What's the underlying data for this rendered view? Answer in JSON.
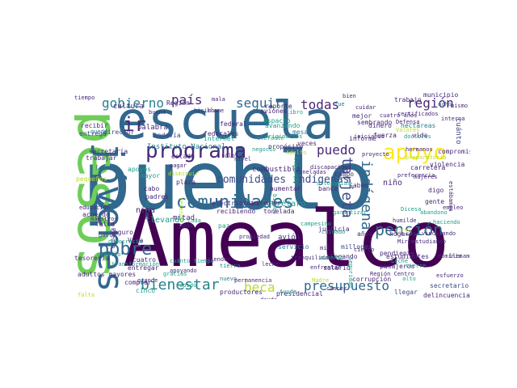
{
  "palette": {
    "dark_purple": "#440154",
    "purple": "#482878",
    "indigo": "#3e4a89",
    "blue": "#31688e",
    "teal_blue": "#26828e",
    "teal": "#1f9e89",
    "green": "#35b779",
    "light_green": "#6ece58",
    "lime": "#8fd744",
    "yellow_green": "#b5de2b",
    "yellow": "#fde725"
  },
  "words": [
    "pueblo",
    "Amealco",
    "escuela",
    "pesos",
    "jóvenes",
    "programa",
    "comunidades",
    "apoyo",
    "pensión",
    "pobre",
    "bienestar",
    "beca",
    "presupuesto",
    "región",
    "gobierno",
    "país",
    "seguir",
    "todas",
    "puedo",
    "indígena",
    "tarjeta",
    "ir",
    "comunidades indígenas",
    "municipio",
    "tiempo",
    "recibir",
    "entrega",
    "cultura",
    "director",
    "palabra",
    "todavía",
    "Instituto Nacional",
    "educación",
    "secretaría",
    "acuerdo",
    "maestros",
    "avión",
    "cuánto",
    "vida",
    "hectáreas",
    "apoyos",
    "mitad",
    "niña",
    "niño",
    "cabo",
    "padres",
    "llevando",
    "Querétaro",
    "tonelada",
    "electricidad",
    "recibiendo",
    "aumentar",
    "banco",
    "campo",
    "Saben",
    "digo",
    "gente",
    "años",
    "millones",
    "llegando",
    "trabajo",
    "salario",
    "hogares",
    "estudiantes",
    "pasajeros",
    "secretario",
    "delincuencia",
    "llegar",
    "presidencial",
    "productores",
    "cinco",
    "cuatro",
    "entregar",
    "comprar",
    "tesorería",
    "adultos mayores",
    "falta",
    "grande",
    "Seguro",
    "Viva",
    "gusto",
    "democracia",
    "estudiando",
    "pendiente",
    "campesino",
    "justicia",
    "servicio",
    "mejor",
    "sembrando",
    "federal",
    "federales",
    "estado",
    "espacio",
    "reporte",
    "avanzando",
    "combustible",
    "disminuir",
    "mayor",
    "dinero",
    "cuatro años",
    "Valores",
    "fuerza",
    "Defensa",
    "interna",
    "trabajar",
    "pequeños",
    "Precio",
    "metas",
    "falta",
    "plaza",
    "veces",
    "propósito",
    "compromiso",
    "violencia",
    "carretera",
    "aviones",
    "informe",
    "Región",
    "buena",
    "hicimos",
    "llame",
    "mala",
    "libro",
    "bien",
    "fue",
    "paz",
    "ocho",
    "mismo",
    "mesa",
    "enfrentar",
    "humilde",
    "iniciando",
    "corrupción",
    "Dicesa",
    "abandono",
    "artesanías",
    "dominio",
    "doctores",
    "llenamos",
    "sirve",
    "tierra",
    "Ayuda",
    "deuda",
    "Miren",
    "internet",
    "Madre",
    "aumento",
    "Seguridad",
    "cierto",
    "mil",
    "pago",
    "rápido",
    "queda",
    "nuevo",
    "orgullo",
    "transformación",
    "originarios",
    "elefante",
    "Leche",
    "gracias",
    "reserva",
    "bienes",
    "garantizar",
    "cierre",
    "sólo",
    "llegando",
    "permanencia",
    "impuestos",
    "discapacidad",
    "certificados",
    "estábamos",
    "haciendo",
    "cuidar",
    "tranquilidad",
    "cuidado",
    "Adolfo",
    "preparatoria",
    "hermanos",
    "cuánto tiempo",
    "propiedad",
    "preferencia",
    "cáncer",
    "empleo",
    "negocio",
    "pagar",
    "nivel",
    "proyecto",
    "cada",
    "atender",
    "apoyando",
    "vinculando",
    "Región Centro",
    "toneladas",
    "alto",
    "leche",
    "mujeres",
    "esfuerzo",
    "nacional",
    "Viviendas",
    "regresar",
    "contar",
    "programas",
    "apoyar",
    "cambio",
    "votar",
    "libres",
    "distribución",
    "junto",
    "contribuir",
    "trabajando",
    "arriba",
    "ciudadanos",
    "escuelas",
    "becas",
    "Benito",
    "ayudar",
    "ganado",
    "nuestra",
    "siempre",
    "hacerlo",
    "visitar",
    "dando",
    "valor"
  ]
}
